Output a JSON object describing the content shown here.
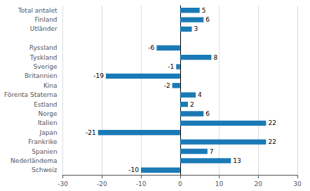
{
  "chart_data": {
    "type": "bar",
    "orientation": "horizontal",
    "categories": [
      "Schweiz",
      "Nederländema",
      "Spanien",
      "Frankrike",
      "Japan",
      "Italien",
      "Norge",
      "Estland",
      "Förenta Staterna",
      "Kina",
      "Britannien",
      "Sverige",
      "Tyskland",
      "Ryssland",
      null,
      "Utländer",
      "Finland",
      "Total antalet"
    ],
    "values": [
      -10,
      13,
      7,
      22,
      -21,
      22,
      6,
      2,
      4,
      -2,
      -19,
      -1,
      8,
      -6,
      null,
      3,
      6,
      5
    ],
    "color": "#1a7ab5",
    "xlim": [
      -30,
      30
    ],
    "xticks": [
      -30,
      -20,
      -10,
      0,
      10,
      20,
      30
    ],
    "grid": true,
    "data_labels": true
  }
}
